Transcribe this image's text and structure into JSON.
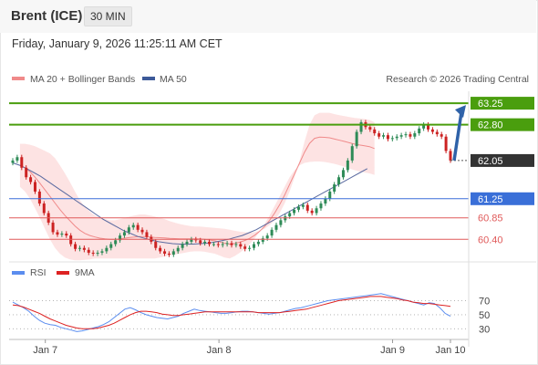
{
  "header": {
    "title": "Brent (ICE)",
    "timeframe": "30 MIN"
  },
  "datetime": "Friday, January 9, 2026 11:25:11 AM CET",
  "legend": {
    "ma20_bb": "MA 20 + Bollinger Bands",
    "ma50": "MA 50",
    "copyright": "Research © 2026 Trading Central"
  },
  "colors": {
    "resistance": "#4a9e0e",
    "pivot": "#3a6fd8",
    "support": "#e05a5a",
    "current": "#333333",
    "bollinger": "#fcdada",
    "ma20": "#f08a8a",
    "ma50": "#5a6aa0",
    "up_candle": "#2e8b57",
    "down_candle": "#cc2222",
    "rsi": "#5b8def",
    "ma9": "#dd2222",
    "arrow": "#2f62a8"
  },
  "chart_data": [
    {
      "type": "candlestick",
      "price_range": [
        60.1,
        63.5
      ],
      "levels": [
        {
          "label": "63.25",
          "value": 63.25,
          "kind": "resistance"
        },
        {
          "label": "62.80",
          "value": 62.8,
          "kind": "resistance"
        },
        {
          "label": "62.05",
          "value": 62.05,
          "kind": "current"
        },
        {
          "label": "61.25",
          "value": 61.25,
          "kind": "pivot"
        },
        {
          "label": "60.85",
          "value": 60.85,
          "kind": "support"
        },
        {
          "label": "60.40",
          "value": 60.4,
          "kind": "support"
        }
      ],
      "x_ticks": [
        "Jan 7",
        "Jan 8",
        "Jan 9",
        "Jan 10"
      ],
      "x_tick_index": [
        9,
        57,
        105,
        121
      ],
      "close": [
        62.05,
        62.12,
        61.9,
        61.7,
        61.6,
        61.4,
        61.15,
        60.95,
        60.75,
        60.55,
        60.5,
        60.52,
        60.48,
        60.3,
        60.2,
        60.22,
        60.18,
        60.12,
        60.1,
        60.12,
        60.15,
        60.22,
        60.3,
        60.38,
        60.48,
        60.55,
        60.65,
        60.7,
        60.6,
        60.55,
        60.45,
        60.35,
        60.22,
        60.15,
        60.1,
        60.08,
        60.15,
        60.22,
        60.3,
        60.35,
        60.4,
        60.38,
        60.32,
        60.35,
        60.3,
        60.3,
        60.28,
        60.3,
        60.32,
        60.28,
        60.3,
        60.25,
        60.2,
        60.22,
        60.3,
        60.35,
        60.42,
        60.48,
        60.6,
        60.7,
        60.8,
        60.88,
        60.95,
        61.02,
        61.08,
        61.12,
        61.0,
        60.95,
        61.05,
        61.15,
        61.25,
        61.4,
        61.55,
        61.7,
        61.85,
        62.05,
        62.35,
        62.65,
        62.85,
        62.75,
        62.7,
        62.62,
        62.55,
        62.58,
        62.5,
        62.52,
        62.55,
        62.58,
        62.6,
        62.55,
        62.62,
        62.72,
        62.8,
        62.7,
        62.65,
        62.6,
        62.55,
        62.25,
        62.05
      ],
      "bollinger_upper": [
        62.4,
        62.4,
        62.38,
        62.35,
        62.3,
        62.25,
        62.2,
        62.1,
        61.95,
        61.78,
        61.6,
        61.4,
        61.22,
        61.08,
        60.98,
        60.9,
        60.85,
        60.82,
        60.8,
        60.8,
        60.82,
        60.85,
        60.88,
        60.9,
        60.92,
        60.92,
        60.9,
        60.88,
        60.85,
        60.82,
        60.78,
        60.75,
        60.72,
        60.7,
        60.68,
        60.67,
        60.67,
        60.66,
        60.65,
        60.64,
        60.63,
        60.62,
        60.6,
        60.58,
        60.56,
        60.55,
        60.54,
        60.55,
        60.58,
        60.62,
        60.7,
        60.8,
        60.95,
        61.15,
        61.4,
        61.7,
        62.05,
        62.45,
        62.8,
        63.0,
        63.05,
        63.05,
        63.05,
        63.02,
        63.0,
        62.98,
        62.96,
        62.94,
        62.93,
        62.92,
        62.9,
        62.85
      ],
      "bollinger_lower": [
        61.5,
        61.4,
        61.25,
        61.05,
        60.85,
        60.62,
        60.4,
        60.22,
        60.1,
        60.02,
        59.98,
        59.96,
        59.96,
        59.97,
        59.98,
        60.0,
        60.0,
        60.0,
        60.0,
        60.0,
        60.0,
        60.0,
        60.0,
        60.0,
        60.0,
        60.0,
        60.0,
        60.0,
        60.02,
        60.04,
        60.06,
        60.08,
        60.1,
        60.12,
        60.14,
        60.15,
        60.15,
        60.14,
        60.12,
        60.1,
        60.06,
        60.02,
        60.0,
        60.05,
        60.12,
        60.2,
        60.3,
        60.42,
        60.56,
        60.72,
        60.9,
        61.1,
        61.3,
        61.5,
        61.7,
        61.85,
        61.95,
        62.0,
        62.02,
        62.03,
        62.03,
        62.02,
        62.0,
        61.98,
        61.95,
        61.92,
        61.88,
        61.85,
        61.82,
        61.8,
        61.78,
        61.75
      ],
      "ma50": [
        62.0,
        61.95,
        61.88,
        61.8,
        61.72,
        61.62,
        61.52,
        61.42,
        61.32,
        61.22,
        61.12,
        61.02,
        60.92,
        60.82,
        60.74,
        60.66,
        60.58,
        60.52,
        60.46,
        60.42,
        60.38,
        60.35,
        60.33,
        60.31,
        60.3,
        60.3,
        60.3,
        60.31,
        60.32,
        60.34,
        60.37,
        60.4,
        60.44,
        60.48,
        60.54,
        60.6,
        60.68,
        60.76,
        60.84,
        60.92,
        61.0,
        61.08,
        61.16,
        61.24,
        61.32,
        61.4,
        61.48,
        61.56,
        61.64,
        61.72,
        61.8,
        61.88
      ]
    },
    {
      "type": "line",
      "title": "RSI",
      "y_ticks": [
        70,
        50,
        30
      ],
      "ylim": [
        20,
        85
      ],
      "series": [
        {
          "name": "RSI",
          "values": [
            68,
            64,
            60,
            55,
            48,
            42,
            38,
            36,
            35,
            32,
            30,
            28,
            26,
            27,
            29,
            31,
            33,
            36,
            40,
            46,
            52,
            58,
            60,
            57,
            53,
            50,
            48,
            46,
            45,
            44,
            46,
            48,
            52,
            55,
            58,
            56,
            55,
            54,
            53,
            52,
            52,
            53,
            54,
            55,
            55,
            54,
            53,
            52,
            51,
            52,
            53,
            55,
            57,
            59,
            60,
            62,
            64,
            66,
            68,
            70,
            71,
            72,
            73,
            74,
            75,
            76,
            77,
            78,
            79,
            80,
            78,
            76,
            74,
            72,
            70,
            68,
            66,
            64,
            67,
            66,
            60,
            52,
            48
          ]
        },
        {
          "name": "9MA",
          "values": [
            64,
            63,
            61,
            58,
            55,
            52,
            48,
            44,
            41,
            38,
            35,
            33,
            31,
            30,
            30,
            30,
            31,
            33,
            35,
            38,
            42,
            46,
            50,
            53,
            55,
            55,
            54,
            53,
            51,
            50,
            49,
            49,
            50,
            51,
            52,
            53,
            54,
            54,
            54,
            54,
            54,
            54,
            54,
            54,
            54,
            54,
            53,
            53,
            53,
            53,
            53,
            54,
            55,
            56,
            57,
            58,
            60,
            62,
            64,
            66,
            68,
            70,
            71,
            72,
            73,
            74,
            75,
            76,
            76,
            76,
            75,
            74,
            73,
            71,
            70,
            68,
            67,
            66,
            66,
            65,
            64,
            63,
            62
          ]
        }
      ]
    }
  ]
}
